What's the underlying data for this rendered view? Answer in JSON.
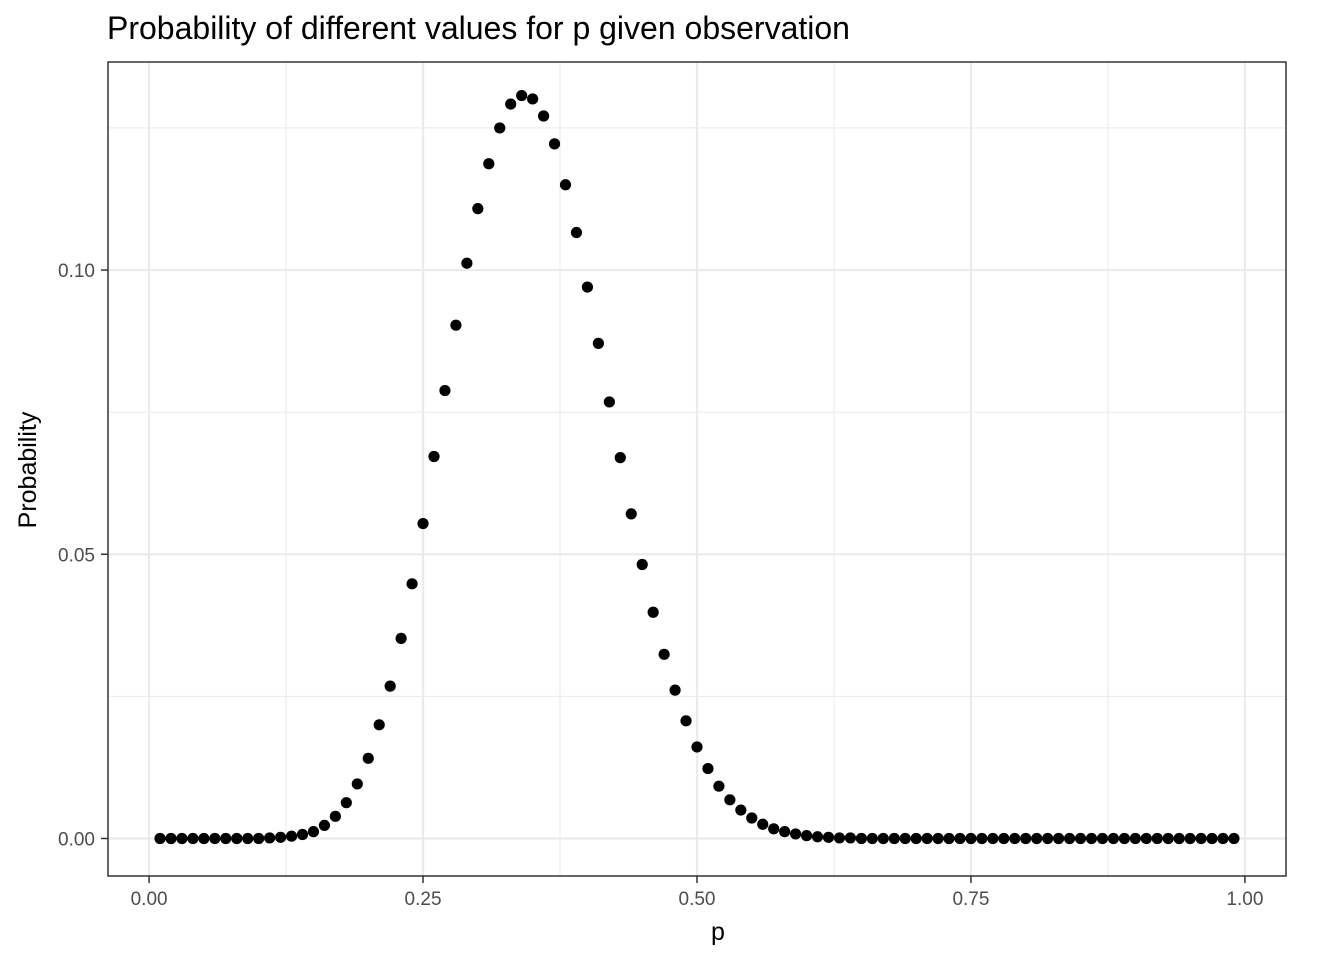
{
  "chart_data": {
    "type": "scatter",
    "title": "Probability of different values for p given observation",
    "xlabel": "p",
    "ylabel": "Probability",
    "xlim": [
      -0.0375,
      1.0375
    ],
    "ylim": [
      -0.0066,
      0.1366
    ],
    "x_ticks": [
      0.0,
      0.25,
      0.5,
      0.75,
      1.0
    ],
    "x_tick_labels": [
      "0.00",
      "0.25",
      "0.50",
      "0.75",
      "1.00"
    ],
    "x_minor_ticks": [
      0.125,
      0.375,
      0.625,
      0.875
    ],
    "y_ticks": [
      0.0,
      0.05,
      0.1
    ],
    "y_tick_labels": [
      "0.00",
      "0.05",
      "0.10"
    ],
    "y_minor_ticks": [
      0.025,
      0.075,
      0.125
    ],
    "grid": true,
    "point_color": "#000000",
    "x": [
      0.01,
      0.02,
      0.03,
      0.04,
      0.05,
      0.06,
      0.07,
      0.08,
      0.09,
      0.1,
      0.11,
      0.12,
      0.13,
      0.14,
      0.15,
      0.16,
      0.17,
      0.18,
      0.19,
      0.2,
      0.21,
      0.22,
      0.23,
      0.24,
      0.25,
      0.26,
      0.27,
      0.28,
      0.29,
      0.3,
      0.31,
      0.32,
      0.33,
      0.34,
      0.35,
      0.36,
      0.37,
      0.38,
      0.39,
      0.4,
      0.41,
      0.42,
      0.43,
      0.44,
      0.45,
      0.46,
      0.47,
      0.48,
      0.49,
      0.5,
      0.51,
      0.52,
      0.53,
      0.54,
      0.55,
      0.56,
      0.57,
      0.58,
      0.59,
      0.6,
      0.61,
      0.62,
      0.63,
      0.64,
      0.65,
      0.66,
      0.67,
      0.68,
      0.69,
      0.7,
      0.71,
      0.72,
      0.73,
      0.74,
      0.75,
      0.76,
      0.77,
      0.78,
      0.79,
      0.8,
      0.81,
      0.82,
      0.83,
      0.84,
      0.85,
      0.86,
      0.87,
      0.88,
      0.89,
      0.9,
      0.91,
      0.92,
      0.93,
      0.94,
      0.95,
      0.96,
      0.97,
      0.98,
      0.99
    ],
    "y": [
      0.0,
      0.0,
      0.0,
      0.0,
      0.0,
      0.0,
      0.0,
      0.0,
      0.0,
      0.0,
      0.0001,
      0.0002,
      0.0004,
      0.0007,
      0.0012,
      0.0023,
      0.0039,
      0.0063,
      0.0096,
      0.0141,
      0.02,
      0.0268,
      0.0352,
      0.0448,
      0.0554,
      0.0672,
      0.0788,
      0.0903,
      0.1012,
      0.1108,
      0.1187,
      0.125,
      0.1292,
      0.1307,
      0.1301,
      0.1271,
      0.1222,
      0.115,
      0.1066,
      0.097,
      0.0871,
      0.0768,
      0.067,
      0.0571,
      0.0482,
      0.0398,
      0.0324,
      0.0261,
      0.0207,
      0.0161,
      0.0123,
      0.0092,
      0.0068,
      0.005,
      0.0036,
      0.0025,
      0.0017,
      0.0012,
      0.0008,
      0.0005,
      0.0003,
      0.0002,
      0.0001,
      0.0001,
      0.0,
      0.0,
      0.0,
      0.0,
      0.0,
      0.0,
      0.0,
      0.0,
      0.0,
      0.0,
      0.0,
      0.0,
      0.0,
      0.0,
      0.0,
      0.0,
      0.0,
      0.0,
      0.0,
      0.0,
      0.0,
      0.0,
      0.0,
      0.0,
      0.0,
      0.0,
      0.0,
      0.0,
      0.0,
      0.0,
      0.0,
      0.0,
      0.0,
      0.0,
      0.0
    ]
  }
}
